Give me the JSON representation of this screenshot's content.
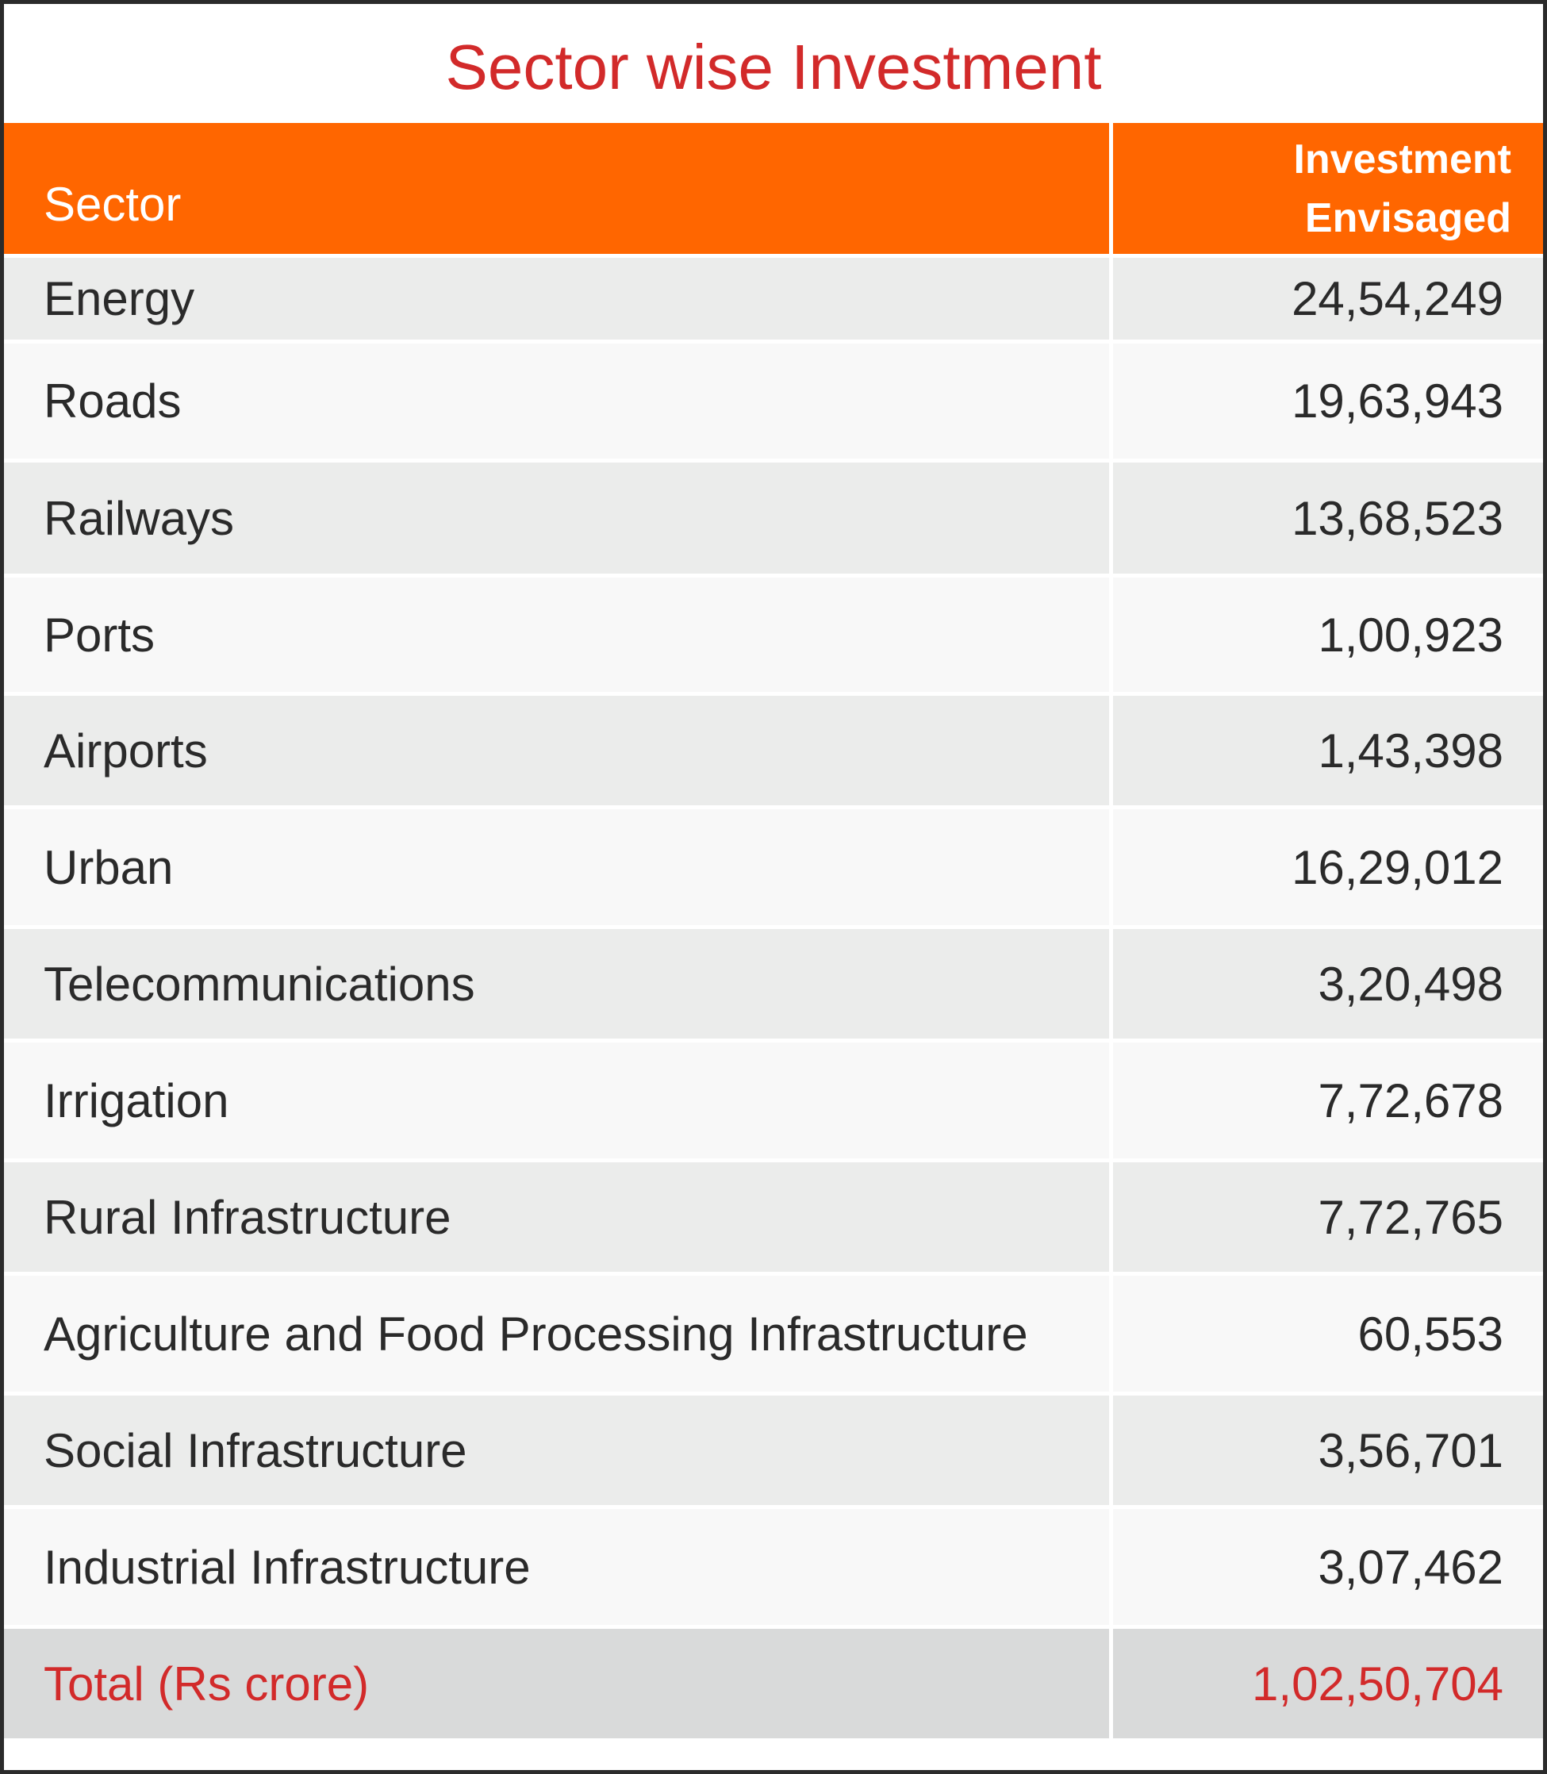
{
  "title": "Sector wise Investment",
  "header": {
    "sector": "Sector",
    "investment_line1": "Investment",
    "investment_line2": "Envisaged"
  },
  "rows": [
    {
      "sector": "Energy",
      "investment": "24,54,249"
    },
    {
      "sector": "Roads",
      "investment": "19,63,943"
    },
    {
      "sector": "Railways",
      "investment": "13,68,523"
    },
    {
      "sector": "Ports",
      "investment": "1,00,923"
    },
    {
      "sector": "Airports",
      "investment": "1,43,398"
    },
    {
      "sector": "Urban",
      "investment": "16,29,012"
    },
    {
      "sector": "Telecommunications",
      "investment": "3,20,498"
    },
    {
      "sector": "Irrigation",
      "investment": "7,72,678"
    },
    {
      "sector": "Rural Infrastructure",
      "investment": "7,72,765"
    },
    {
      "sector": "Agriculture and Food Processing Infrastructure",
      "investment": "60,553"
    },
    {
      "sector": "Social Infrastructure",
      "investment": "3,56,701"
    },
    {
      "sector": "Industrial Infrastructure",
      "investment": "3,07,462"
    }
  ],
  "total": {
    "label": "Total (Rs crore)",
    "value": "1,02,50,704"
  },
  "colors": {
    "header_bg": "#ff6600",
    "title_and_total_text": "#d22a2a",
    "row_odd": "#ebeceb",
    "row_even": "#f8f8f8",
    "total_bg": "#d9dada"
  }
}
